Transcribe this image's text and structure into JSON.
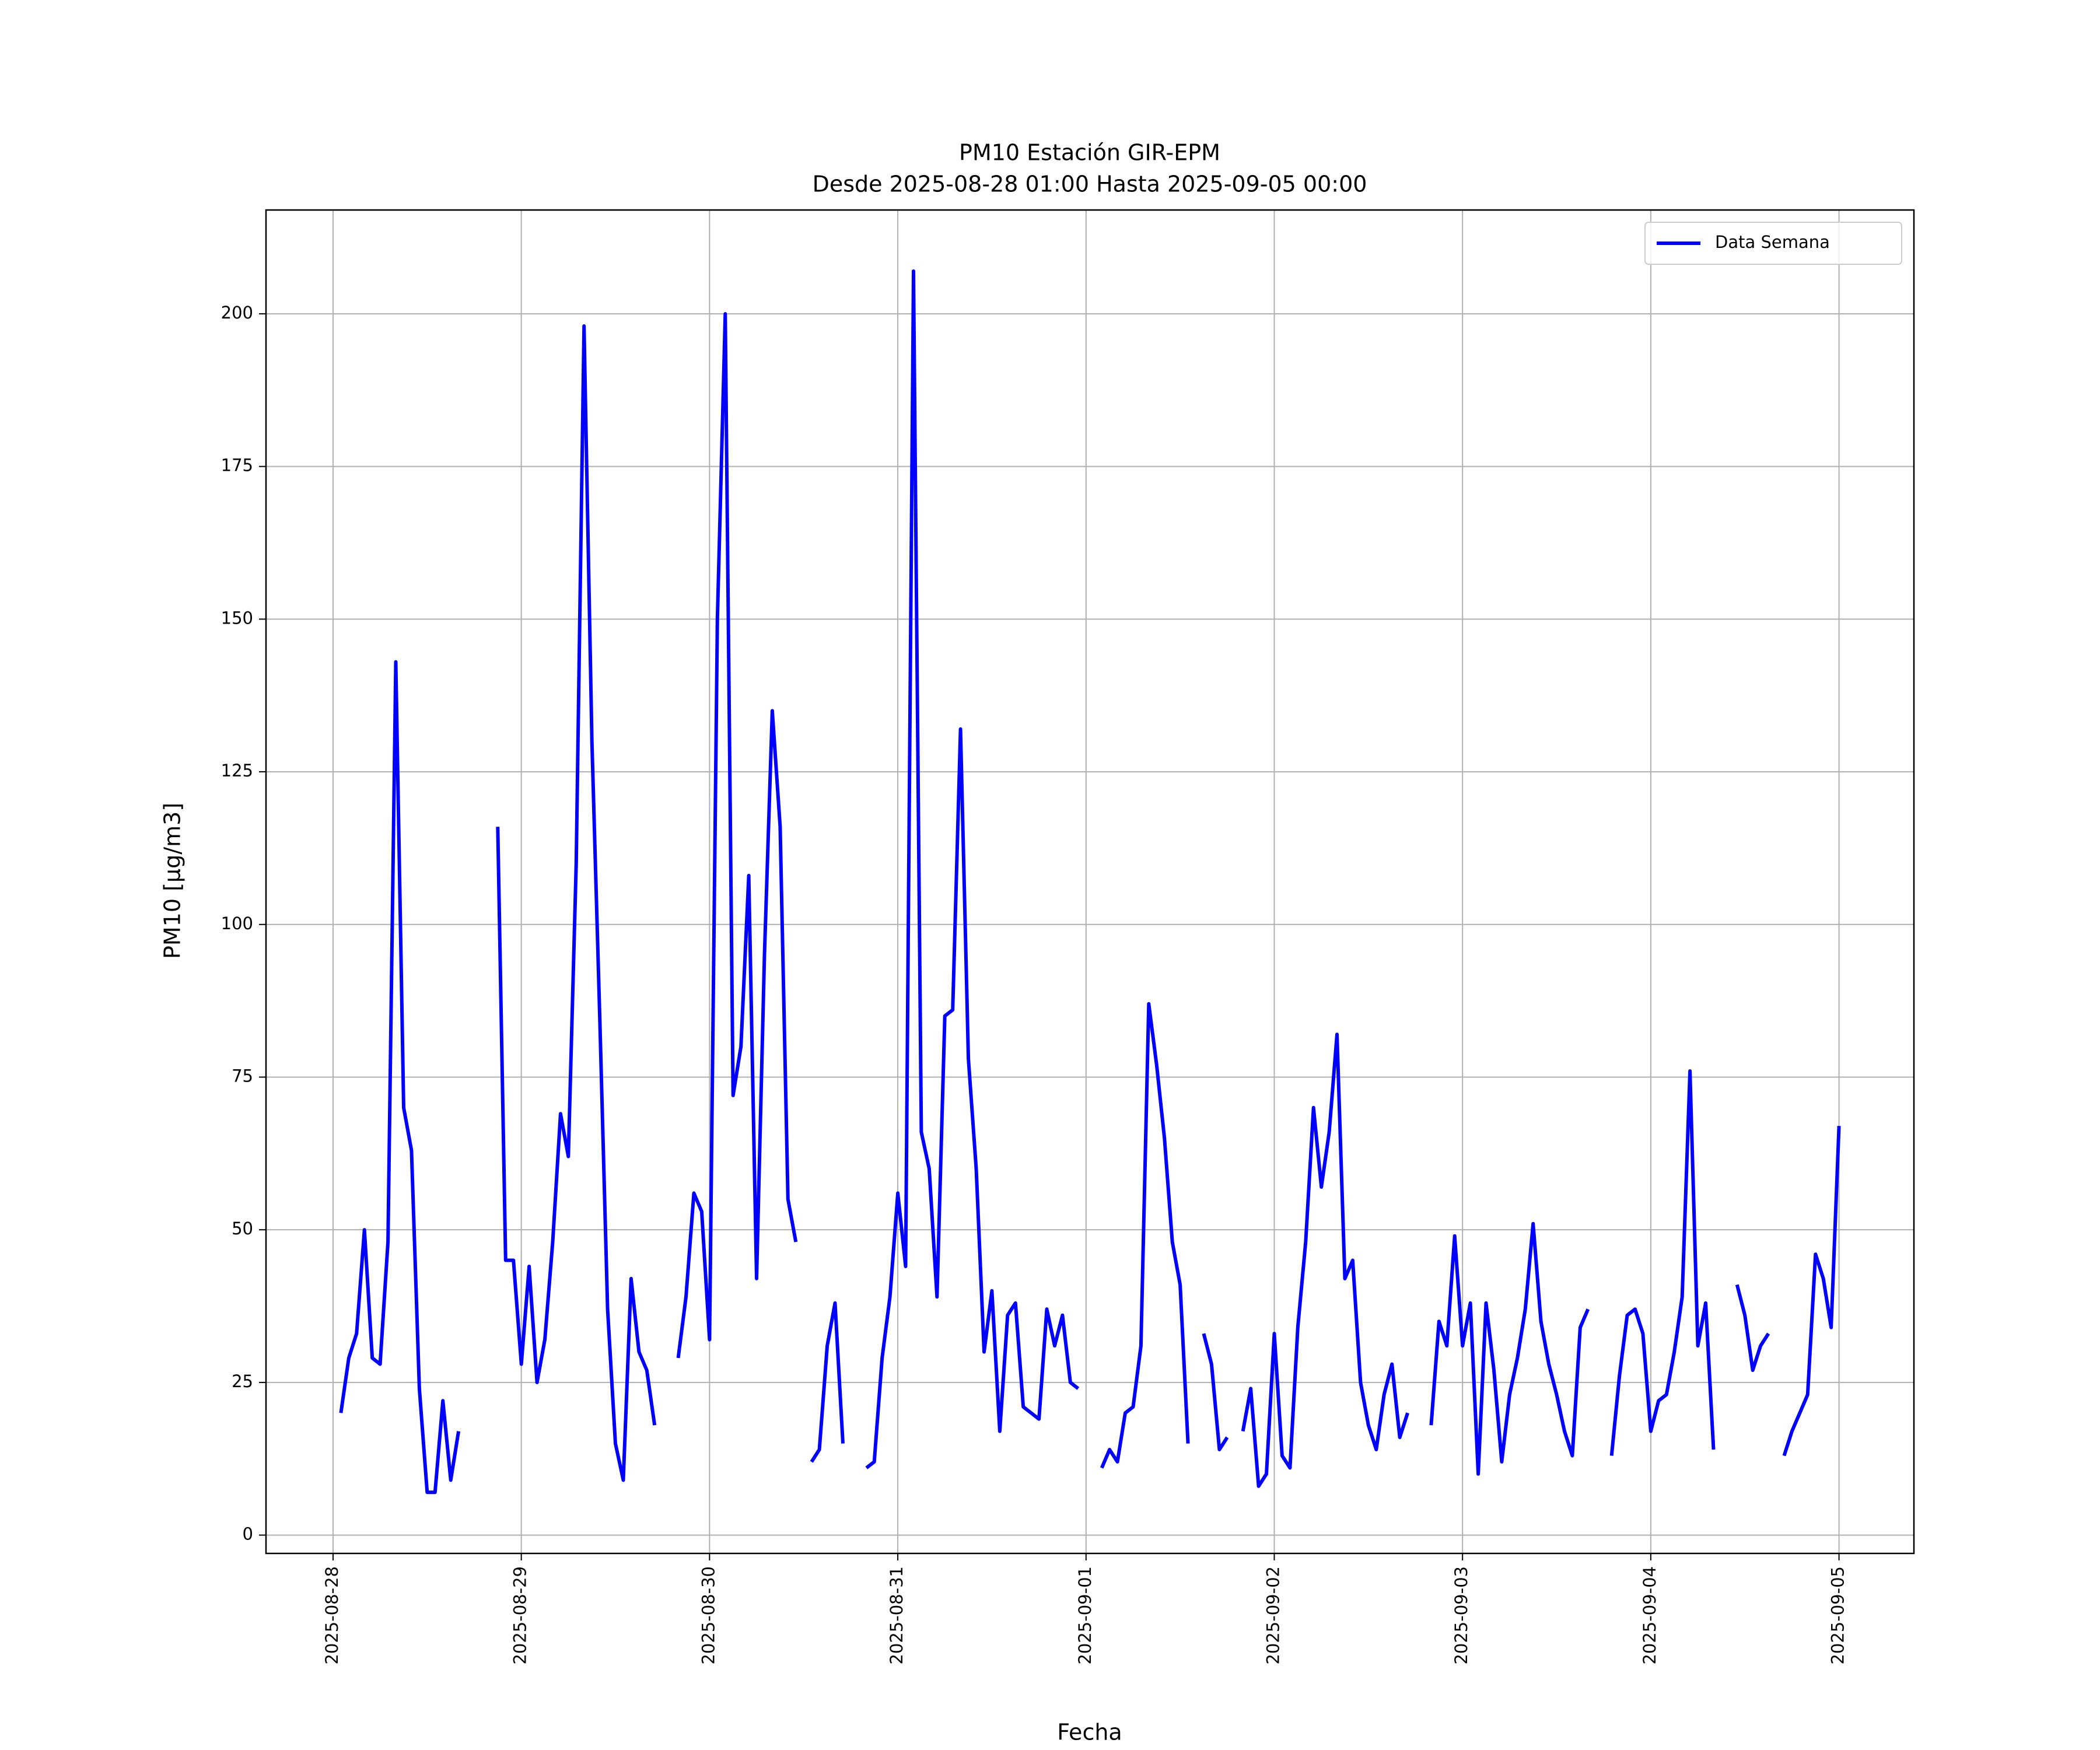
{
  "chart_data": {
    "type": "line",
    "title": "PM10 Estación GIR-EPM",
    "subtitle": "Desde 2025-08-28 01:00 Hasta 2025-09-05 00:00",
    "x_label": "Fecha",
    "y_label": "PM10 [μg/m3]",
    "x": [
      "2025-08-28 01:00",
      "2025-08-28 02:00",
      "2025-08-28 03:00",
      "2025-08-28 04:00",
      "2025-08-28 05:00",
      "2025-08-28 06:00",
      "2025-08-28 07:00",
      "2025-08-28 08:00",
      "2025-08-28 09:00",
      "2025-08-28 10:00",
      "2025-08-28 11:00",
      "2025-08-28 12:00",
      "2025-08-28 13:00",
      "2025-08-28 14:00",
      "2025-08-28 15:00",
      "2025-08-28 16:00",
      "2025-08-28 17:00",
      "2025-08-28 18:00",
      "2025-08-28 19:00",
      "2025-08-28 20:00",
      "2025-08-28 21:00",
      "2025-08-28 22:00",
      "2025-08-28 23:00",
      "2025-08-29 00:00",
      "2025-08-29 01:00",
      "2025-08-29 02:00",
      "2025-08-29 03:00",
      "2025-08-29 04:00",
      "2025-08-29 05:00",
      "2025-08-29 06:00",
      "2025-08-29 07:00",
      "2025-08-29 08:00",
      "2025-08-29 09:00",
      "2025-08-29 10:00",
      "2025-08-29 11:00",
      "2025-08-29 12:00",
      "2025-08-29 13:00",
      "2025-08-29 14:00",
      "2025-08-29 15:00",
      "2025-08-29 16:00",
      "2025-08-29 17:00",
      "2025-08-29 18:00",
      "2025-08-29 19:00",
      "2025-08-29 20:00",
      "2025-08-29 21:00",
      "2025-08-29 22:00",
      "2025-08-29 23:00",
      "2025-08-30 00:00",
      "2025-08-30 01:00",
      "2025-08-30 02:00",
      "2025-08-30 03:00",
      "2025-08-30 04:00",
      "2025-08-30 05:00",
      "2025-08-30 06:00",
      "2025-08-30 07:00",
      "2025-08-30 08:00",
      "2025-08-30 09:00",
      "2025-08-30 10:00",
      "2025-08-30 11:00",
      "2025-08-30 12:00",
      "2025-08-30 13:00",
      "2025-08-30 14:00",
      "2025-08-30 15:00",
      "2025-08-30 16:00",
      "2025-08-30 17:00",
      "2025-08-30 18:00",
      "2025-08-30 19:00",
      "2025-08-30 20:00",
      "2025-08-30 21:00",
      "2025-08-30 22:00",
      "2025-08-30 23:00",
      "2025-08-31 00:00",
      "2025-08-31 01:00",
      "2025-08-31 02:00",
      "2025-08-31 03:00",
      "2025-08-31 04:00",
      "2025-08-31 05:00",
      "2025-08-31 06:00",
      "2025-08-31 07:00",
      "2025-08-31 08:00",
      "2025-08-31 09:00",
      "2025-08-31 10:00",
      "2025-08-31 11:00",
      "2025-08-31 12:00",
      "2025-08-31 13:00",
      "2025-08-31 14:00",
      "2025-08-31 15:00",
      "2025-08-31 16:00",
      "2025-08-31 17:00",
      "2025-08-31 18:00",
      "2025-08-31 19:00",
      "2025-08-31 20:00",
      "2025-08-31 21:00",
      "2025-08-31 22:00",
      "2025-08-31 23:00",
      "2025-09-01 00:00",
      "2025-09-01 01:00",
      "2025-09-01 02:00",
      "2025-09-01 03:00",
      "2025-09-01 04:00",
      "2025-09-01 05:00",
      "2025-09-01 06:00",
      "2025-09-01 07:00",
      "2025-09-01 08:00",
      "2025-09-01 09:00",
      "2025-09-01 10:00",
      "2025-09-01 11:00",
      "2025-09-01 12:00",
      "2025-09-01 13:00",
      "2025-09-01 14:00",
      "2025-09-01 15:00",
      "2025-09-01 16:00",
      "2025-09-01 17:00",
      "2025-09-01 18:00",
      "2025-09-01 19:00",
      "2025-09-01 20:00",
      "2025-09-01 21:00",
      "2025-09-01 22:00",
      "2025-09-01 23:00",
      "2025-09-02 00:00",
      "2025-09-02 01:00",
      "2025-09-02 02:00",
      "2025-09-02 03:00",
      "2025-09-02 04:00",
      "2025-09-02 05:00",
      "2025-09-02 06:00",
      "2025-09-02 07:00",
      "2025-09-02 08:00",
      "2025-09-02 09:00",
      "2025-09-02 10:00",
      "2025-09-02 11:00",
      "2025-09-02 12:00",
      "2025-09-02 13:00",
      "2025-09-02 14:00",
      "2025-09-02 15:00",
      "2025-09-02 16:00",
      "2025-09-02 17:00",
      "2025-09-02 18:00",
      "2025-09-02 19:00",
      "2025-09-02 20:00",
      "2025-09-02 21:00",
      "2025-09-02 22:00",
      "2025-09-02 23:00",
      "2025-09-03 00:00",
      "2025-09-03 01:00",
      "2025-09-03 02:00",
      "2025-09-03 03:00",
      "2025-09-03 04:00",
      "2025-09-03 05:00",
      "2025-09-03 06:00",
      "2025-09-03 07:00",
      "2025-09-03 08:00",
      "2025-09-03 09:00",
      "2025-09-03 10:00",
      "2025-09-03 11:00",
      "2025-09-03 12:00",
      "2025-09-03 13:00",
      "2025-09-03 14:00",
      "2025-09-03 15:00",
      "2025-09-03 16:00",
      "2025-09-03 17:00",
      "2025-09-03 18:00",
      "2025-09-03 19:00",
      "2025-09-03 20:00",
      "2025-09-03 21:00",
      "2025-09-03 22:00",
      "2025-09-03 23:00",
      "2025-09-04 00:00",
      "2025-09-04 01:00",
      "2025-09-04 02:00",
      "2025-09-04 03:00",
      "2025-09-04 04:00",
      "2025-09-04 05:00",
      "2025-09-04 06:00",
      "2025-09-04 07:00",
      "2025-09-04 08:00",
      "2025-09-04 09:00",
      "2025-09-04 10:00",
      "2025-09-04 11:00",
      "2025-09-04 12:00",
      "2025-09-04 13:00",
      "2025-09-04 14:00",
      "2025-09-04 15:00",
      "2025-09-04 16:00",
      "2025-09-04 17:00",
      "2025-09-04 18:00",
      "2025-09-04 19:00",
      "2025-09-04 20:00",
      "2025-09-04 21:00",
      "2025-09-04 22:00",
      "2025-09-04 23:00",
      "2025-09-05 00:00"
    ],
    "series": [
      {
        "name": "Data Semana",
        "color": "#0000ff",
        "values": [
          20,
          29,
          33,
          50,
          29,
          28,
          48,
          143,
          70,
          63,
          24,
          7,
          7,
          22,
          9,
          17,
          null,
          null,
          null,
          null,
          116,
          45,
          45,
          28,
          44,
          25,
          32,
          48,
          69,
          62,
          110,
          198,
          130,
          85,
          37,
          15,
          9,
          42,
          30,
          27,
          18,
          null,
          null,
          29,
          39,
          56,
          53,
          32,
          150,
          200,
          72,
          80,
          108,
          42,
          95,
          135,
          116,
          55,
          48,
          null,
          12,
          14,
          31,
          38,
          15,
          null,
          null,
          11,
          12,
          29,
          39,
          56,
          44,
          207,
          66,
          60,
          39,
          85,
          86,
          132,
          78,
          60,
          30,
          40,
          17,
          36,
          38,
          21,
          20,
          19,
          37,
          31,
          36,
          25,
          24,
          null,
          null,
          11,
          14,
          12,
          20,
          21,
          31,
          87,
          77,
          65,
          48,
          41,
          15,
          null,
          33,
          28,
          14,
          16,
          null,
          17,
          24,
          8,
          10,
          33,
          13,
          11,
          34,
          48,
          70,
          57,
          66,
          82,
          42,
          45,
          25,
          18,
          14,
          23,
          28,
          16,
          20,
          null,
          null,
          18,
          35,
          31,
          49,
          31,
          38,
          10,
          38,
          27,
          12,
          23,
          29,
          37,
          51,
          35,
          28,
          23,
          17,
          13,
          34,
          37,
          null,
          null,
          13,
          26,
          36,
          37,
          33,
          17,
          22,
          23,
          30,
          39,
          76,
          31,
          38,
          14,
          null,
          null,
          41,
          36,
          27,
          31,
          33,
          null,
          13,
          17,
          20,
          23,
          46,
          42,
          34,
          67
        ]
      }
    ],
    "xlim": [
      "2025-08-27 15:27",
      "2025-09-05 09:33"
    ],
    "xticks": [
      "2025-08-28",
      "2025-08-29",
      "2025-08-30",
      "2025-08-31",
      "2025-09-01",
      "2025-09-02",
      "2025-09-03",
      "2025-09-04",
      "2025-09-05"
    ],
    "ylim": [
      -3,
      217
    ],
    "yticks": [
      0,
      25,
      50,
      75,
      100,
      125,
      150,
      175,
      200
    ],
    "grid": true,
    "legend": "upper right"
  }
}
